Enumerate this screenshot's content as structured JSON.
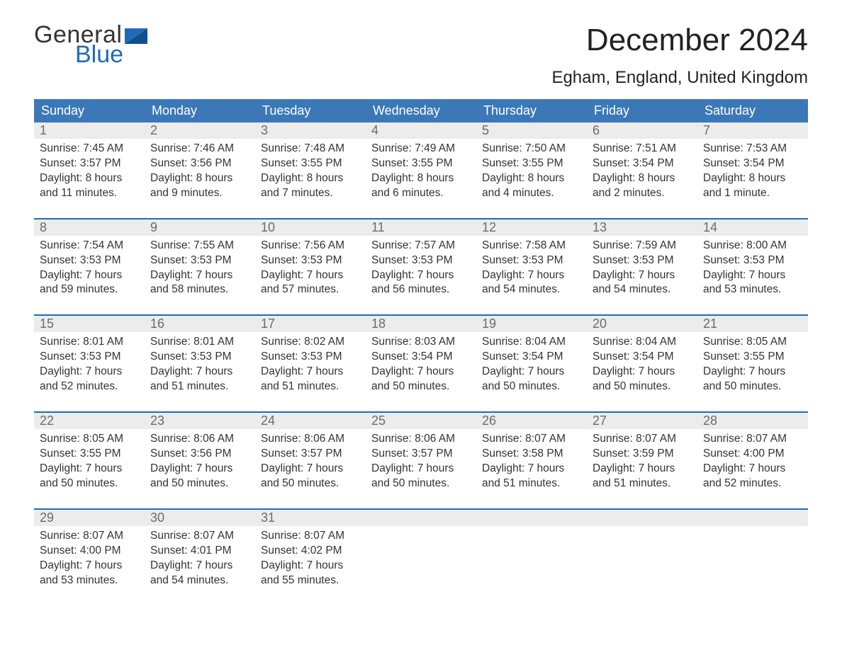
{
  "logo": {
    "word1": "General",
    "word2": "Blue"
  },
  "title": "December 2024",
  "subtitle": "Egham, England, United Kingdom",
  "colors": {
    "header_blue": "#3b78b8",
    "accent_blue": "#1f6bb7",
    "row_gray": "#ececec",
    "text_dark": "#333333",
    "day_num_gray": "#6b6b6b",
    "background": "#ffffff"
  },
  "daysOfWeek": [
    "Sunday",
    "Monday",
    "Tuesday",
    "Wednesday",
    "Thursday",
    "Friday",
    "Saturday"
  ],
  "weeks": [
    [
      {
        "n": "1",
        "sunrise": "Sunrise: 7:45 AM",
        "sunset": "Sunset: 3:57 PM",
        "d1": "Daylight: 8 hours",
        "d2": "and 11 minutes."
      },
      {
        "n": "2",
        "sunrise": "Sunrise: 7:46 AM",
        "sunset": "Sunset: 3:56 PM",
        "d1": "Daylight: 8 hours",
        "d2": "and 9 minutes."
      },
      {
        "n": "3",
        "sunrise": "Sunrise: 7:48 AM",
        "sunset": "Sunset: 3:55 PM",
        "d1": "Daylight: 8 hours",
        "d2": "and 7 minutes."
      },
      {
        "n": "4",
        "sunrise": "Sunrise: 7:49 AM",
        "sunset": "Sunset: 3:55 PM",
        "d1": "Daylight: 8 hours",
        "d2": "and 6 minutes."
      },
      {
        "n": "5",
        "sunrise": "Sunrise: 7:50 AM",
        "sunset": "Sunset: 3:55 PM",
        "d1": "Daylight: 8 hours",
        "d2": "and 4 minutes."
      },
      {
        "n": "6",
        "sunrise": "Sunrise: 7:51 AM",
        "sunset": "Sunset: 3:54 PM",
        "d1": "Daylight: 8 hours",
        "d2": "and 2 minutes."
      },
      {
        "n": "7",
        "sunrise": "Sunrise: 7:53 AM",
        "sunset": "Sunset: 3:54 PM",
        "d1": "Daylight: 8 hours",
        "d2": "and 1 minute."
      }
    ],
    [
      {
        "n": "8",
        "sunrise": "Sunrise: 7:54 AM",
        "sunset": "Sunset: 3:53 PM",
        "d1": "Daylight: 7 hours",
        "d2": "and 59 minutes."
      },
      {
        "n": "9",
        "sunrise": "Sunrise: 7:55 AM",
        "sunset": "Sunset: 3:53 PM",
        "d1": "Daylight: 7 hours",
        "d2": "and 58 minutes."
      },
      {
        "n": "10",
        "sunrise": "Sunrise: 7:56 AM",
        "sunset": "Sunset: 3:53 PM",
        "d1": "Daylight: 7 hours",
        "d2": "and 57 minutes."
      },
      {
        "n": "11",
        "sunrise": "Sunrise: 7:57 AM",
        "sunset": "Sunset: 3:53 PM",
        "d1": "Daylight: 7 hours",
        "d2": "and 56 minutes."
      },
      {
        "n": "12",
        "sunrise": "Sunrise: 7:58 AM",
        "sunset": "Sunset: 3:53 PM",
        "d1": "Daylight: 7 hours",
        "d2": "and 54 minutes."
      },
      {
        "n": "13",
        "sunrise": "Sunrise: 7:59 AM",
        "sunset": "Sunset: 3:53 PM",
        "d1": "Daylight: 7 hours",
        "d2": "and 54 minutes."
      },
      {
        "n": "14",
        "sunrise": "Sunrise: 8:00 AM",
        "sunset": "Sunset: 3:53 PM",
        "d1": "Daylight: 7 hours",
        "d2": "and 53 minutes."
      }
    ],
    [
      {
        "n": "15",
        "sunrise": "Sunrise: 8:01 AM",
        "sunset": "Sunset: 3:53 PM",
        "d1": "Daylight: 7 hours",
        "d2": "and 52 minutes."
      },
      {
        "n": "16",
        "sunrise": "Sunrise: 8:01 AM",
        "sunset": "Sunset: 3:53 PM",
        "d1": "Daylight: 7 hours",
        "d2": "and 51 minutes."
      },
      {
        "n": "17",
        "sunrise": "Sunrise: 8:02 AM",
        "sunset": "Sunset: 3:53 PM",
        "d1": "Daylight: 7 hours",
        "d2": "and 51 minutes."
      },
      {
        "n": "18",
        "sunrise": "Sunrise: 8:03 AM",
        "sunset": "Sunset: 3:54 PM",
        "d1": "Daylight: 7 hours",
        "d2": "and 50 minutes."
      },
      {
        "n": "19",
        "sunrise": "Sunrise: 8:04 AM",
        "sunset": "Sunset: 3:54 PM",
        "d1": "Daylight: 7 hours",
        "d2": "and 50 minutes."
      },
      {
        "n": "20",
        "sunrise": "Sunrise: 8:04 AM",
        "sunset": "Sunset: 3:54 PM",
        "d1": "Daylight: 7 hours",
        "d2": "and 50 minutes."
      },
      {
        "n": "21",
        "sunrise": "Sunrise: 8:05 AM",
        "sunset": "Sunset: 3:55 PM",
        "d1": "Daylight: 7 hours",
        "d2": "and 50 minutes."
      }
    ],
    [
      {
        "n": "22",
        "sunrise": "Sunrise: 8:05 AM",
        "sunset": "Sunset: 3:55 PM",
        "d1": "Daylight: 7 hours",
        "d2": "and 50 minutes."
      },
      {
        "n": "23",
        "sunrise": "Sunrise: 8:06 AM",
        "sunset": "Sunset: 3:56 PM",
        "d1": "Daylight: 7 hours",
        "d2": "and 50 minutes."
      },
      {
        "n": "24",
        "sunrise": "Sunrise: 8:06 AM",
        "sunset": "Sunset: 3:57 PM",
        "d1": "Daylight: 7 hours",
        "d2": "and 50 minutes."
      },
      {
        "n": "25",
        "sunrise": "Sunrise: 8:06 AM",
        "sunset": "Sunset: 3:57 PM",
        "d1": "Daylight: 7 hours",
        "d2": "and 50 minutes."
      },
      {
        "n": "26",
        "sunrise": "Sunrise: 8:07 AM",
        "sunset": "Sunset: 3:58 PM",
        "d1": "Daylight: 7 hours",
        "d2": "and 51 minutes."
      },
      {
        "n": "27",
        "sunrise": "Sunrise: 8:07 AM",
        "sunset": "Sunset: 3:59 PM",
        "d1": "Daylight: 7 hours",
        "d2": "and 51 minutes."
      },
      {
        "n": "28",
        "sunrise": "Sunrise: 8:07 AM",
        "sunset": "Sunset: 4:00 PM",
        "d1": "Daylight: 7 hours",
        "d2": "and 52 minutes."
      }
    ],
    [
      {
        "n": "29",
        "sunrise": "Sunrise: 8:07 AM",
        "sunset": "Sunset: 4:00 PM",
        "d1": "Daylight: 7 hours",
        "d2": "and 53 minutes."
      },
      {
        "n": "30",
        "sunrise": "Sunrise: 8:07 AM",
        "sunset": "Sunset: 4:01 PM",
        "d1": "Daylight: 7 hours",
        "d2": "and 54 minutes."
      },
      {
        "n": "31",
        "sunrise": "Sunrise: 8:07 AM",
        "sunset": "Sunset: 4:02 PM",
        "d1": "Daylight: 7 hours",
        "d2": "and 55 minutes."
      },
      {
        "empty": true
      },
      {
        "empty": true
      },
      {
        "empty": true
      },
      {
        "empty": true
      }
    ]
  ]
}
